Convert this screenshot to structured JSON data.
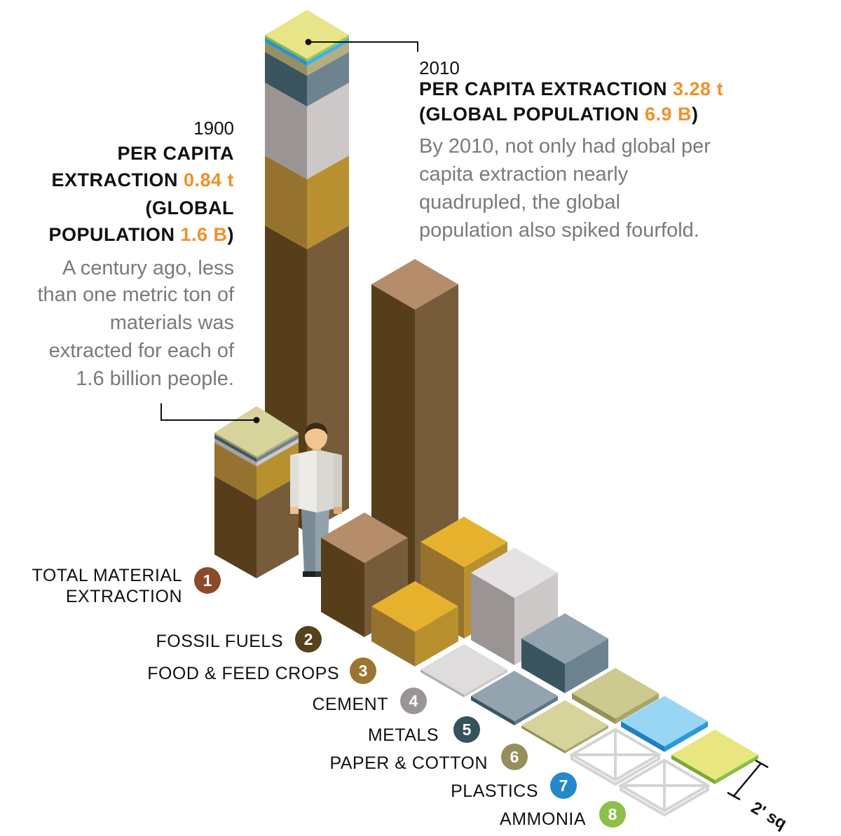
{
  "callout_1900": {
    "year": "1900",
    "line1": "PER CAPITA",
    "line2_prefix": "EXTRACTION ",
    "line2_value": "0.84 t",
    "line3": "(GLOBAL",
    "line4_prefix": "POPULATION ",
    "line4_value": "1.6 B",
    "line4_suffix": ")",
    "description": [
      "A century ago, less",
      "than one metric ton of",
      "materials was",
      "extracted for each of",
      "1.6 billion people."
    ]
  },
  "callout_2010": {
    "year": "2010",
    "line1_prefix": "PER CAPITA EXTRACTION ",
    "line1_value": "3.28 t",
    "line2_prefix": "(GLOBAL POPULATION ",
    "line2_value": "6.9 B",
    "line2_suffix": ")",
    "description": [
      "By 2010, not only had global per",
      "capita extraction nearly",
      "quadrupled, the global",
      "population also spiked fourfold."
    ]
  },
  "legend": [
    {
      "number": "1",
      "label_lines": [
        "TOTAL MATERIAL",
        "EXTRACTION"
      ],
      "color": "#8a4b2a"
    },
    {
      "number": "2",
      "label_lines": [
        "FOSSIL FUELS"
      ],
      "color": "#58421a"
    },
    {
      "number": "3",
      "label_lines": [
        "FOOD & FEED CROPS"
      ],
      "color": "#9c7530"
    },
    {
      "number": "4",
      "label_lines": [
        "CEMENT"
      ],
      "color": "#9a9594"
    },
    {
      "number": "5",
      "label_lines": [
        "METALS"
      ],
      "color": "#36525c"
    },
    {
      "number": "6",
      "label_lines": [
        "PAPER & COTTON"
      ],
      "color": "#958f5c"
    },
    {
      "number": "7",
      "label_lines": [
        "PLASTICS"
      ],
      "color": "#2588cc"
    },
    {
      "number": "8",
      "label_lines": [
        "AMMONIA"
      ],
      "color": "#8cc04a"
    }
  ],
  "scale_label": "2' sq",
  "colors": {
    "accent": "#f0902a",
    "fossil": "#5a4320",
    "crops": "#b88f2e",
    "cement": "#c8c4c3",
    "metals": "#5e7a86",
    "paper": "#c3c08a",
    "plastics": "#57b8e6",
    "ammonia": "#dcdc7a"
  }
}
